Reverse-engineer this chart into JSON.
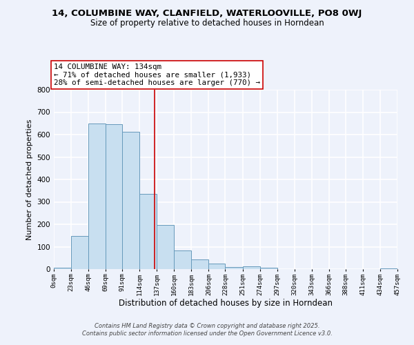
{
  "title": "14, COLUMBINE WAY, CLANFIELD, WATERLOOVILLE, PO8 0WJ",
  "subtitle": "Size of property relative to detached houses in Horndean",
  "xlabel": "Distribution of detached houses by size in Horndean",
  "ylabel": "Number of detached properties",
  "bin_edges": [
    0,
    23,
    46,
    69,
    91,
    114,
    137,
    160,
    183,
    206,
    228,
    251,
    274,
    297,
    320,
    343,
    366,
    388,
    411,
    434,
    457
  ],
  "bin_counts": [
    5,
    148,
    648,
    645,
    612,
    335,
    198,
    84,
    42,
    25,
    10,
    11,
    5,
    1,
    0,
    0,
    0,
    0,
    0,
    2
  ],
  "tick_labels": [
    "0sqm",
    "23sqm",
    "46sqm",
    "69sqm",
    "91sqm",
    "114sqm",
    "137sqm",
    "160sqm",
    "183sqm",
    "206sqm",
    "228sqm",
    "251sqm",
    "274sqm",
    "297sqm",
    "320sqm",
    "343sqm",
    "366sqm",
    "388sqm",
    "411sqm",
    "434sqm",
    "457sqm"
  ],
  "bar_color": "#c8dff0",
  "bar_edge_color": "#6699bb",
  "property_line_x": 134,
  "property_line_color": "#cc0000",
  "annotation_line1": "14 COLUMBINE WAY: 134sqm",
  "annotation_line2": "← 71% of detached houses are smaller (1,933)",
  "annotation_line3": "28% of semi-detached houses are larger (770) →",
  "annotation_box_edge_color": "#cc0000",
  "annotation_box_facecolor": "#ffffff",
  "ylim": [
    0,
    800
  ],
  "yticks": [
    0,
    100,
    200,
    300,
    400,
    500,
    600,
    700,
    800
  ],
  "background_color": "#eef2fb",
  "grid_color": "#ffffff",
  "footer_line1": "Contains HM Land Registry data © Crown copyright and database right 2025.",
  "footer_line2": "Contains public sector information licensed under the Open Government Licence v3.0."
}
